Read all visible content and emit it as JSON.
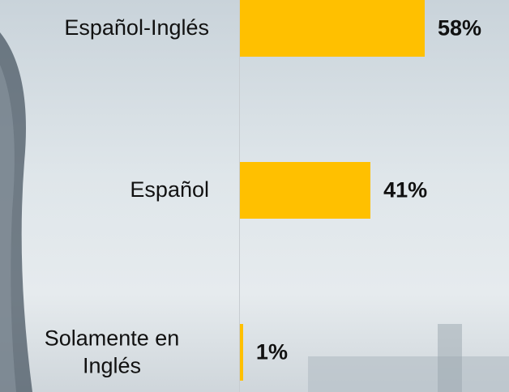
{
  "chart_data": {
    "type": "bar",
    "orientation": "horizontal",
    "categories": [
      "Español-Inglés",
      "Español",
      "Solamente en Inglés"
    ],
    "values": [
      58,
      41,
      1
    ],
    "value_labels": [
      "58%",
      "41%",
      "1%"
    ],
    "color": "#ffc000"
  }
}
